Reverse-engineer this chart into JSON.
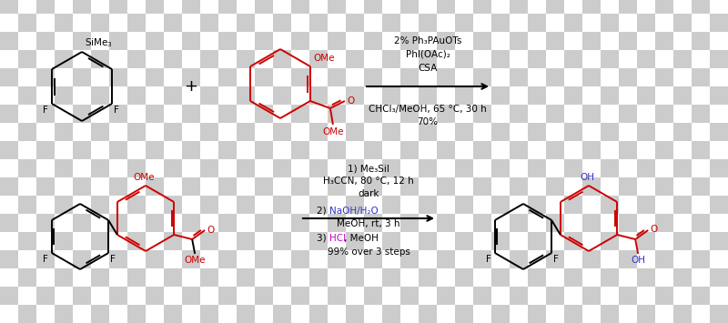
{
  "bg_checker_light": "#ffffff",
  "bg_checker_dark": "#cccccc",
  "black": "#000000",
  "red": "#cc0000",
  "blue": "#3333cc",
  "magenta": "#cc00cc",
  "top_above_text": [
    "2% Ph₃PAuOTs",
    "PhI(OAc)₂",
    "CSA"
  ],
  "top_below_text": [
    "CHCl₃/MeOH, 65 °C, 30 h",
    "70%"
  ],
  "bottom_above_text": [
    "1) Me₃SiI",
    "H₃CCN, 80 °C, 12 h",
    "dark"
  ],
  "bottom_naoh": "NaOH/H₂O",
  "bottom_meoh": "MeOH, rt, 3 h",
  "bottom_hcl": "HCl",
  "bottom_hcl_rest": ", MeOH",
  "bottom_yield": "99% over 3 steps",
  "figsize": [
    8.0,
    3.55
  ],
  "dpi": 100
}
